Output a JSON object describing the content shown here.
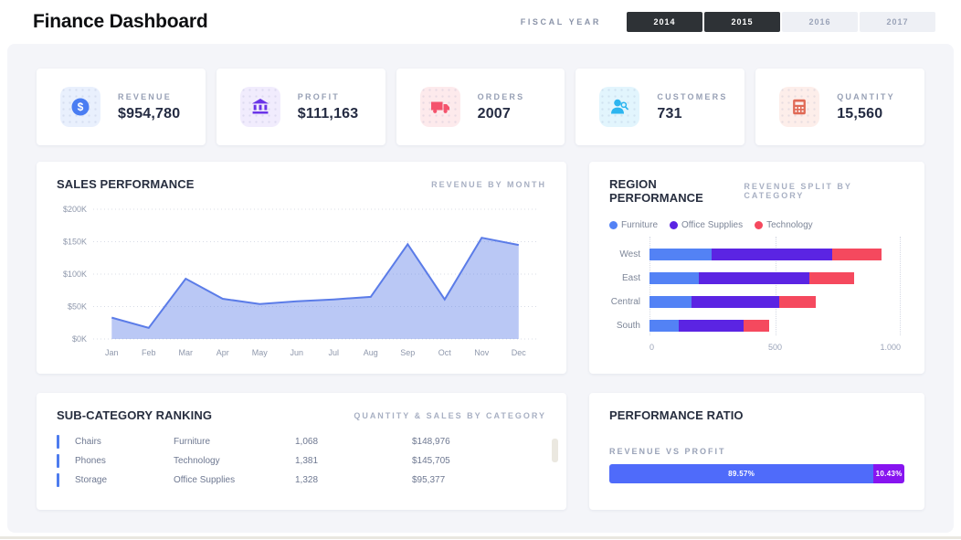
{
  "header": {
    "title": "Finance Dashboard",
    "fiscal_year_label": "FISCAL YEAR",
    "years": [
      {
        "label": "2014",
        "active": true
      },
      {
        "label": "2015",
        "active": true
      },
      {
        "label": "2016",
        "active": false
      },
      {
        "label": "2017",
        "active": false
      }
    ]
  },
  "kpis": [
    {
      "label": "REVENUE",
      "value": "$954,780",
      "icon": "dollar-circle-icon",
      "color": "#4a7df2",
      "bg": "#e9f0fd"
    },
    {
      "label": "PROFIT",
      "value": "$111,163",
      "icon": "bank-icon",
      "color": "#6a35e8",
      "bg": "#f1ecfd"
    },
    {
      "label": "ORDERS",
      "value": "2007",
      "icon": "truck-icon",
      "color": "#f4536d",
      "bg": "#fdeaec"
    },
    {
      "label": "CUSTOMERS",
      "value": "731",
      "icon": "person-search-icon",
      "color": "#2cb5ef",
      "bg": "#e2f5fd"
    },
    {
      "label": "QUANTITY",
      "value": "15,560",
      "icon": "calculator-icon",
      "color": "#e06a56",
      "bg": "#fdeeea"
    }
  ],
  "sales_performance": {
    "title": "SALES PERFORMANCE",
    "subtitle": "REVENUE BY MONTH"
  },
  "region_performance": {
    "title": "REGION PERFORMANCE",
    "subtitle": "REVENUE SPLIT BY CATEGORY"
  },
  "subcategory": {
    "title": "SUB-CATEGORY RANKING",
    "subtitle": "QUANTITY & SALES BY CATEGORY",
    "rows": [
      {
        "name": "Chairs",
        "category": "Furniture",
        "quantity": "1,068",
        "sales": "$148,976"
      },
      {
        "name": "Phones",
        "category": "Technology",
        "quantity": "1,381",
        "sales": "$145,705"
      },
      {
        "name": "Storage",
        "category": "Office Supplies",
        "quantity": "1,328",
        "sales": "$95,377"
      }
    ]
  },
  "performance_ratio": {
    "title": "PERFORMANCE RATIO",
    "label": "REVENUE VS PROFIT",
    "segments": [
      {
        "name": "Revenue",
        "value": 89.57,
        "display": "89.57%",
        "color": "#4f6bfa"
      },
      {
        "name": "Profit",
        "value": 10.43,
        "display": "10.43%",
        "color": "#8714f0"
      }
    ]
  },
  "chart_data": [
    {
      "type": "area",
      "title": "Sales Performance — Revenue by Month",
      "x": [
        "Jan",
        "Feb",
        "Mar",
        "Apr",
        "May",
        "Jun",
        "Jul",
        "Aug",
        "Sep",
        "Oct",
        "Nov",
        "Dec"
      ],
      "values": [
        33000,
        17000,
        93000,
        62000,
        54000,
        58000,
        61000,
        65000,
        146000,
        61000,
        156000,
        145000
      ],
      "ylim": [
        0,
        200000
      ],
      "y_ticks": [
        "$0K",
        "$50K",
        "$100K",
        "$150K",
        "$200K"
      ],
      "grid": true,
      "line_color": "#5b7ce8",
      "fill_color": "rgba(91,124,232,0.42)"
    },
    {
      "type": "bar",
      "orientation": "horizontal",
      "stacked": true,
      "title": "Region Performance — Revenue split by Category",
      "categories": [
        "West",
        "East",
        "Central",
        "South"
      ],
      "series": [
        {
          "name": "Furniture",
          "color": "#5382f5",
          "values": [
            247,
            196,
            167,
            116
          ]
        },
        {
          "name": "Office Supplies",
          "color": "#5b24e3",
          "values": [
            479,
            439,
            348,
            257
          ]
        },
        {
          "name": "Technology",
          "color": "#f5495e",
          "values": [
            198,
            180,
            148,
            102
          ]
        }
      ],
      "xlim": [
        0,
        1000
      ],
      "x_ticks": [
        "0",
        "500",
        "1.000"
      ],
      "legend_position": "top"
    }
  ]
}
